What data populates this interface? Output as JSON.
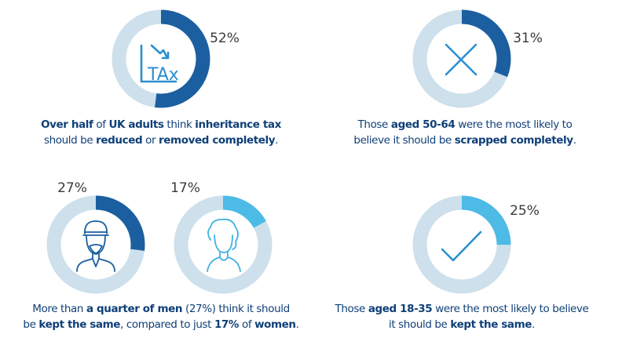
{
  "chart_data": [
    {
      "type": "donut",
      "values": [
        52
      ],
      "value_labels": [
        "52%"
      ],
      "color": "#1b5fa0",
      "icon_text": "TAx",
      "caption": [
        [
          {
            "text": "Over half",
            "bold": true
          },
          {
            "text": " of ",
            "bold": false
          },
          {
            "text": "UK adults",
            "bold": true
          },
          {
            "text": " think ",
            "bold": false
          },
          {
            "text": "inheritance tax",
            "bold": true
          }
        ],
        [
          {
            "text": "should be ",
            "bold": false
          },
          {
            "text": "reduced",
            "bold": true
          },
          {
            "text": " or ",
            "bold": false
          },
          {
            "text": "removed completely",
            "bold": true
          },
          {
            "text": ".",
            "bold": false
          }
        ]
      ]
    },
    {
      "type": "donut",
      "values": [
        31
      ],
      "value_labels": [
        "31%"
      ],
      "color": "#1b5fa0",
      "caption": [
        [
          {
            "text": "Those ",
            "bold": false
          },
          {
            "text": "aged 50-64",
            "bold": true
          },
          {
            "text": " were the most likely to",
            "bold": false
          }
        ],
        [
          {
            "text": "believe it should be ",
            "bold": false
          },
          {
            "text": "scrapped completely",
            "bold": true
          },
          {
            "text": ".",
            "bold": false
          }
        ]
      ]
    },
    {
      "type": "donut",
      "values": [
        27
      ],
      "value_labels": [
        "27%"
      ],
      "color": "#1b5fa0",
      "caption": [
        [
          {
            "text": "More than ",
            "bold": false
          },
          {
            "text": "a quarter of men",
            "bold": true
          },
          {
            "text": " (27%) think it should",
            "bold": false
          }
        ],
        [
          {
            "text": "be ",
            "bold": false
          },
          {
            "text": "kept the same",
            "bold": true
          },
          {
            "text": ", compared to just ",
            "bold": false
          },
          {
            "text": "17%",
            "bold": true
          },
          {
            "text": " of ",
            "bold": false
          },
          {
            "text": "women",
            "bold": true
          },
          {
            "text": ".",
            "bold": false
          }
        ]
      ]
    },
    {
      "type": "donut",
      "values": [
        17
      ],
      "value_labels": [
        "17%"
      ],
      "color": "#4dbbe6"
    },
    {
      "type": "donut",
      "values": [
        25
      ],
      "value_labels": [
        "25%"
      ],
      "color": "#4dbbe6",
      "caption": [
        [
          {
            "text": "Those ",
            "bold": false
          },
          {
            "text": "aged 18-35",
            "bold": true
          },
          {
            "text": " were the most likely to believe",
            "bold": false
          }
        ],
        [
          {
            "text": "it should be ",
            "bold": false
          },
          {
            "text": "kept the same",
            "bold": true
          },
          {
            "text": ".",
            "bold": false
          }
        ]
      ]
    }
  ]
}
